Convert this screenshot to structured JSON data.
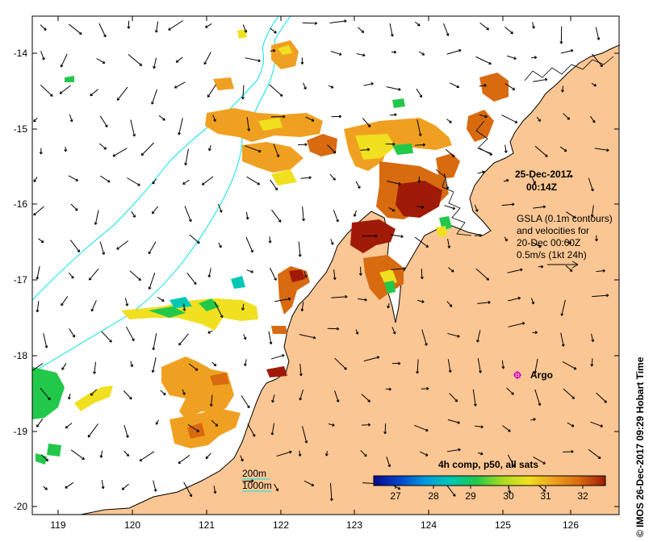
{
  "map": {
    "x_ticks": [
      "119",
      "120",
      "121",
      "122",
      "123",
      "124",
      "125",
      "126"
    ],
    "y_ticks": [
      "-14",
      "-15",
      "-16",
      "-17",
      "-18",
      "-19",
      "-20"
    ]
  },
  "timestamp": {
    "date": "25-Dec-2017",
    "time": "00:14Z"
  },
  "info": {
    "line1": "GSLA (0.1m contours)",
    "line2": "and velocities for",
    "line3": "20-Dec 00:00Z",
    "line4": "0.5m/s (1kt 24h)"
  },
  "argo": {
    "label": "Argo",
    "color": "#cc00cc"
  },
  "depth_legend": {
    "d200": "200m",
    "d1000": "1000m",
    "color": "#00e5ee"
  },
  "colorbar": {
    "title": "4h comp, p50, all sats",
    "ticks": [
      "27",
      "28",
      "29",
      "30",
      "31",
      "32"
    ],
    "colors": [
      "#0a0a8c",
      "#0044cc",
      "#0099dd",
      "#00c8b4",
      "#22c84a",
      "#aadd22",
      "#f0e020",
      "#f0a020",
      "#d86a10",
      "#a01a08"
    ]
  },
  "credit": "© IMOS 26-Dec-2017 09:29 Hobart Time",
  "colors": {
    "land": "#fac693",
    "frame": "#000000"
  }
}
